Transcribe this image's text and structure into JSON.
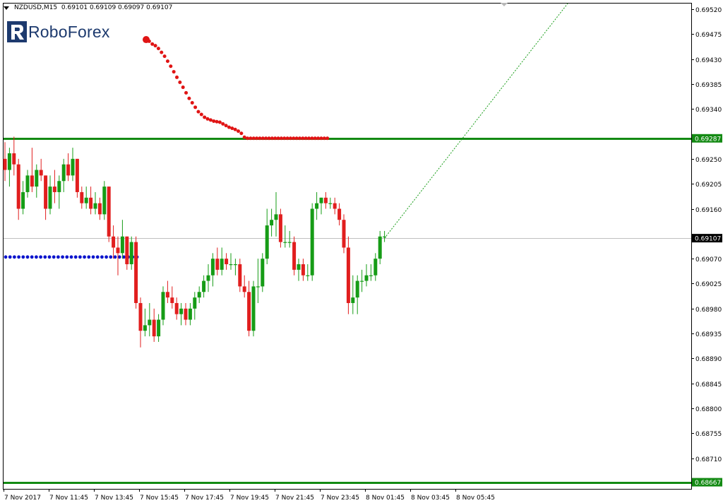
{
  "header": {
    "symbol_timeframe": "NZDUSD,M15",
    "quote": "0.69101 0.69109 0.69097 0.69107"
  },
  "logo": {
    "text": "RoboForex"
  },
  "colors": {
    "bull": "#169C16",
    "bear": "#E11E1E",
    "level_line": "#138A13",
    "forecast_dots": "#E01414",
    "blue_dots": "#0A14CC",
    "current_price_line": "#C0C0C0",
    "axis": "#000000"
  },
  "chart_data": {
    "type": "candlestick",
    "symbol": "NZDUSD",
    "timeframe": "M15",
    "ylim": [
      0.68655,
      0.6953
    ],
    "y_ticks": [
      "0.69520",
      "0.69475",
      "0.69430",
      "0.69385",
      "0.69340",
      "0.69250",
      "0.69205",
      "0.69160",
      "0.69070",
      "0.69025",
      "0.68980",
      "0.68935",
      "0.68890",
      "0.68845",
      "0.68800",
      "0.68755",
      "0.68710"
    ],
    "x_ticks": [
      "7 Nov 2017",
      "7 Nov 11:45",
      "7 Nov 13:45",
      "7 Nov 15:45",
      "7 Nov 17:45",
      "7 Nov 19:45",
      "7 Nov 21:45",
      "7 Nov 23:45",
      "8 Nov 01:45",
      "8 Nov 03:45",
      "8 Nov 05:45"
    ],
    "current_price": 0.69107,
    "current_price_label": "0.69107",
    "levels": [
      {
        "value": 0.69287,
        "label": "0.69287"
      },
      {
        "value": 0.68667,
        "label": "0.68667"
      }
    ],
    "blue_level": 0.69073,
    "candles": [
      [
        0.6925,
        0.6928,
        0.6921,
        0.6923
      ],
      [
        0.6923,
        0.6927,
        0.692,
        0.6926
      ],
      [
        0.6926,
        0.6929,
        0.6922,
        0.6924
      ],
      [
        0.6924,
        0.6925,
        0.6914,
        0.6916
      ],
      [
        0.6916,
        0.6921,
        0.6915,
        0.6919
      ],
      [
        0.6919,
        0.6923,
        0.6918,
        0.6922
      ],
      [
        0.6922,
        0.6927,
        0.6919,
        0.692
      ],
      [
        0.692,
        0.6924,
        0.6918,
        0.6923
      ],
      [
        0.6923,
        0.6925,
        0.6921,
        0.6922
      ],
      [
        0.6922,
        0.6922,
        0.6914,
        0.6916
      ],
      [
        0.6916,
        0.6922,
        0.6915,
        0.692
      ],
      [
        0.692,
        0.6923,
        0.6917,
        0.6919
      ],
      [
        0.6919,
        0.6922,
        0.6916,
        0.6921
      ],
      [
        0.6921,
        0.6925,
        0.6919,
        0.6924
      ],
      [
        0.6924,
        0.6926,
        0.6921,
        0.6922
      ],
      [
        0.6922,
        0.6927,
        0.6921,
        0.6925
      ],
      [
        0.6925,
        0.6925,
        0.6918,
        0.6919
      ],
      [
        0.6919,
        0.692,
        0.6916,
        0.6917
      ],
      [
        0.6917,
        0.692,
        0.6916,
        0.6918
      ],
      [
        0.6918,
        0.692,
        0.6915,
        0.6916
      ],
      [
        0.6916,
        0.6919,
        0.6915,
        0.6917
      ],
      [
        0.6917,
        0.6918,
        0.6914,
        0.6915
      ],
      [
        0.6915,
        0.6921,
        0.6914,
        0.692
      ],
      [
        0.692,
        0.692,
        0.691,
        0.6911
      ],
      [
        0.6911,
        0.6913,
        0.6907,
        0.6909
      ],
      [
        0.6909,
        0.6911,
        0.6904,
        0.6908
      ],
      [
        0.6908,
        0.6914,
        0.6907,
        0.6911
      ],
      [
        0.6911,
        0.6911,
        0.6905,
        0.6906
      ],
      [
        0.6906,
        0.6911,
        0.6905,
        0.691
      ],
      [
        0.691,
        0.6911,
        0.6898,
        0.6899
      ],
      [
        0.6899,
        0.69,
        0.6891,
        0.6894
      ],
      [
        0.6894,
        0.6898,
        0.6893,
        0.6895
      ],
      [
        0.6895,
        0.6899,
        0.6893,
        0.6896
      ],
      [
        0.6896,
        0.6898,
        0.6892,
        0.6893
      ],
      [
        0.6893,
        0.6897,
        0.6892,
        0.6896
      ],
      [
        0.6896,
        0.6902,
        0.6895,
        0.6901
      ],
      [
        0.6901,
        0.6903,
        0.6899,
        0.69
      ],
      [
        0.69,
        0.6902,
        0.6898,
        0.6899
      ],
      [
        0.6899,
        0.69,
        0.6896,
        0.6897
      ],
      [
        0.6897,
        0.6899,
        0.6895,
        0.6898
      ],
      [
        0.6898,
        0.6899,
        0.6895,
        0.6896
      ],
      [
        0.6896,
        0.6899,
        0.6895,
        0.6898
      ],
      [
        0.6898,
        0.6901,
        0.6896,
        0.69
      ],
      [
        0.69,
        0.6902,
        0.6899,
        0.6901
      ],
      [
        0.6901,
        0.6904,
        0.69,
        0.6903
      ],
      [
        0.6903,
        0.6906,
        0.6901,
        0.6904
      ],
      [
        0.6904,
        0.6908,
        0.6902,
        0.6907
      ],
      [
        0.6907,
        0.6909,
        0.6904,
        0.6905
      ],
      [
        0.6905,
        0.6909,
        0.6904,
        0.6907
      ],
      [
        0.6907,
        0.6908,
        0.6905,
        0.6906
      ],
      [
        0.6906,
        0.6908,
        0.6905,
        0.6906
      ],
      [
        0.6906,
        0.6907,
        0.6904,
        0.6906
      ],
      [
        0.6906,
        0.6907,
        0.6901,
        0.6902
      ],
      [
        0.6902,
        0.6904,
        0.69,
        0.6901
      ],
      [
        0.6901,
        0.6903,
        0.6893,
        0.6894
      ],
      [
        0.6894,
        0.6903,
        0.6893,
        0.6902
      ],
      [
        0.6902,
        0.6907,
        0.6899,
        0.6902
      ],
      [
        0.6902,
        0.6908,
        0.6901,
        0.6907
      ],
      [
        0.6907,
        0.6916,
        0.6906,
        0.6913
      ],
      [
        0.6913,
        0.6916,
        0.6911,
        0.6914
      ],
      [
        0.6914,
        0.6919,
        0.6911,
        0.6915
      ],
      [
        0.6915,
        0.6916,
        0.6909,
        0.691
      ],
      [
        0.691,
        0.6913,
        0.6909,
        0.691
      ],
      [
        0.691,
        0.6912,
        0.6909,
        0.691
      ],
      [
        0.691,
        0.6911,
        0.6904,
        0.6905
      ],
      [
        0.6905,
        0.6907,
        0.6903,
        0.6906
      ],
      [
        0.6906,
        0.6907,
        0.6903,
        0.6904
      ],
      [
        0.6904,
        0.6906,
        0.6903,
        0.6904
      ],
      [
        0.6904,
        0.6917,
        0.6903,
        0.6916
      ],
      [
        0.6916,
        0.6919,
        0.6914,
        0.6917
      ],
      [
        0.6917,
        0.6918,
        0.6915,
        0.6918
      ],
      [
        0.6918,
        0.6919,
        0.6916,
        0.6917
      ],
      [
        0.6917,
        0.6918,
        0.6916,
        0.6917
      ],
      [
        0.6917,
        0.6918,
        0.6915,
        0.6916
      ],
      [
        0.6916,
        0.6917,
        0.6913,
        0.6914
      ],
      [
        0.6914,
        0.6915,
        0.6908,
        0.6909
      ],
      [
        0.6909,
        0.6911,
        0.6897,
        0.6899
      ],
      [
        0.6899,
        0.6904,
        0.6897,
        0.69
      ],
      [
        0.69,
        0.6904,
        0.6897,
        0.6903
      ],
      [
        0.6903,
        0.6905,
        0.6901,
        0.6903
      ],
      [
        0.6903,
        0.6906,
        0.6902,
        0.6904
      ],
      [
        0.6904,
        0.6906,
        0.6903,
        0.6904
      ],
      [
        0.6904,
        0.6908,
        0.6903,
        0.6907
      ],
      [
        0.6907,
        0.6912,
        0.6906,
        0.6911
      ],
      [
        0.6911,
        0.6912,
        0.691,
        0.6911
      ]
    ],
    "forecast_red_dots": [
      [
        0.69465,
        0.69462,
        0.69457,
        0.69454,
        0.69449,
        0.69442,
        0.69435,
        0.69426,
        0.69417,
        0.69407,
        0.69397,
        0.69388,
        0.69379,
        0.69369,
        0.69359,
        0.69351,
        0.69343,
        0.69335,
        0.6933,
        0.69325,
        0.69322,
        0.6932,
        0.69318,
        0.69317,
        0.69316,
        0.69313,
        0.6931,
        0.69307,
        0.69305,
        0.69303,
        0.693,
        0.69296,
        0.69289,
        0.69287,
        0.69287,
        0.69287,
        0.69287,
        0.69287,
        0.69287,
        0.69287,
        0.69287,
        0.69287,
        0.69287,
        0.69287,
        0.69287,
        0.69287,
        0.69287,
        0.69287,
        0.69287,
        0.69287,
        0.69287,
        0.69287,
        0.69287,
        0.69287,
        0.69287,
        0.69287,
        0.69287,
        0.69287,
        0.69287,
        0.69287
      ]
    ],
    "forecast_projection": [
      [
        0.69107,
        0.6953
      ]
    ]
  }
}
